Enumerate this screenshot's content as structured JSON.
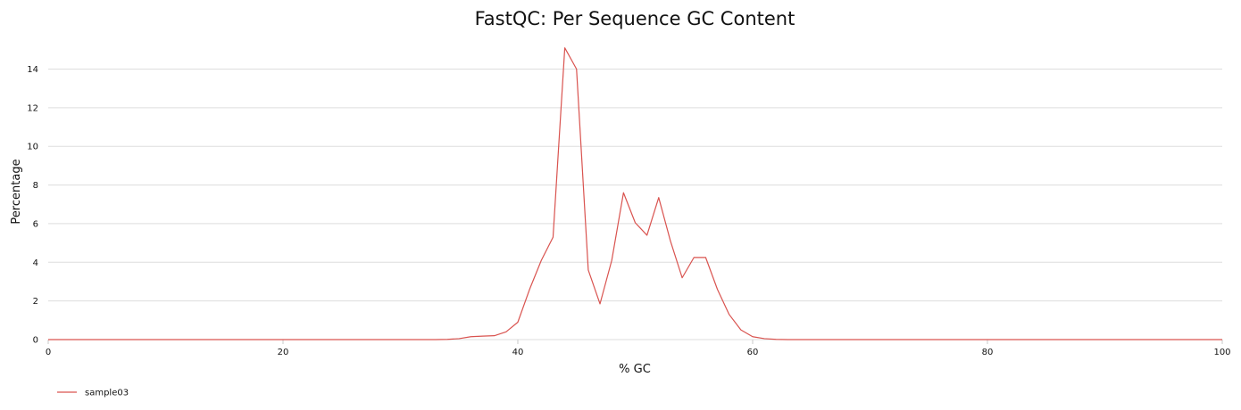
{
  "chart_data": {
    "type": "line",
    "title": "FastQC: Per Sequence GC Content",
    "xlabel": "% GC",
    "ylabel": "Percentage",
    "xlim": [
      0,
      100
    ],
    "ylim": [
      0,
      15.5
    ],
    "x_ticks": [
      0,
      20,
      40,
      60,
      80,
      100
    ],
    "y_ticks": [
      0,
      2,
      4,
      6,
      8,
      10,
      12,
      14
    ],
    "grid": true,
    "legend_position": "bottom-left",
    "series": [
      {
        "name": "sample03",
        "color": "#d9534f",
        "x": [
          0,
          1,
          2,
          3,
          4,
          5,
          6,
          7,
          8,
          9,
          10,
          11,
          12,
          13,
          14,
          15,
          16,
          17,
          18,
          19,
          20,
          21,
          22,
          23,
          24,
          25,
          26,
          27,
          28,
          29,
          30,
          31,
          32,
          33,
          34,
          35,
          36,
          37,
          38,
          39,
          40,
          41,
          42,
          43,
          44,
          45,
          46,
          47,
          48,
          49,
          50,
          51,
          52,
          53,
          54,
          55,
          56,
          57,
          58,
          59,
          60,
          61,
          62,
          63,
          64,
          65,
          66,
          67,
          68,
          69,
          70,
          71,
          72,
          73,
          74,
          75,
          76,
          77,
          78,
          79,
          80,
          81,
          82,
          83,
          84,
          85,
          86,
          87,
          88,
          89,
          90,
          91,
          92,
          93,
          94,
          95,
          96,
          97,
          98,
          99,
          100
        ],
        "y": [
          0,
          0,
          0,
          0,
          0,
          0,
          0,
          0,
          0,
          0,
          0,
          0,
          0,
          0,
          0,
          0,
          0,
          0,
          0,
          0,
          0,
          0,
          0,
          0,
          0,
          0,
          0,
          0,
          0,
          0,
          0,
          0,
          0,
          0,
          0.01,
          0.05,
          0.15,
          0.18,
          0.2,
          0.4,
          0.9,
          2.6,
          4.1,
          5.3,
          15.1,
          14.0,
          3.6,
          1.85,
          4.1,
          7.6,
          6.05,
          5.4,
          7.35,
          5.1,
          3.2,
          4.25,
          4.25,
          2.6,
          1.3,
          0.5,
          0.15,
          0.05,
          0.01,
          0,
          0,
          0,
          0,
          0,
          0,
          0,
          0,
          0,
          0,
          0,
          0,
          0,
          0,
          0,
          0,
          0,
          0,
          0,
          0,
          0,
          0,
          0,
          0,
          0,
          0,
          0,
          0,
          0,
          0,
          0,
          0,
          0,
          0,
          0,
          0,
          0,
          0
        ]
      }
    ]
  }
}
